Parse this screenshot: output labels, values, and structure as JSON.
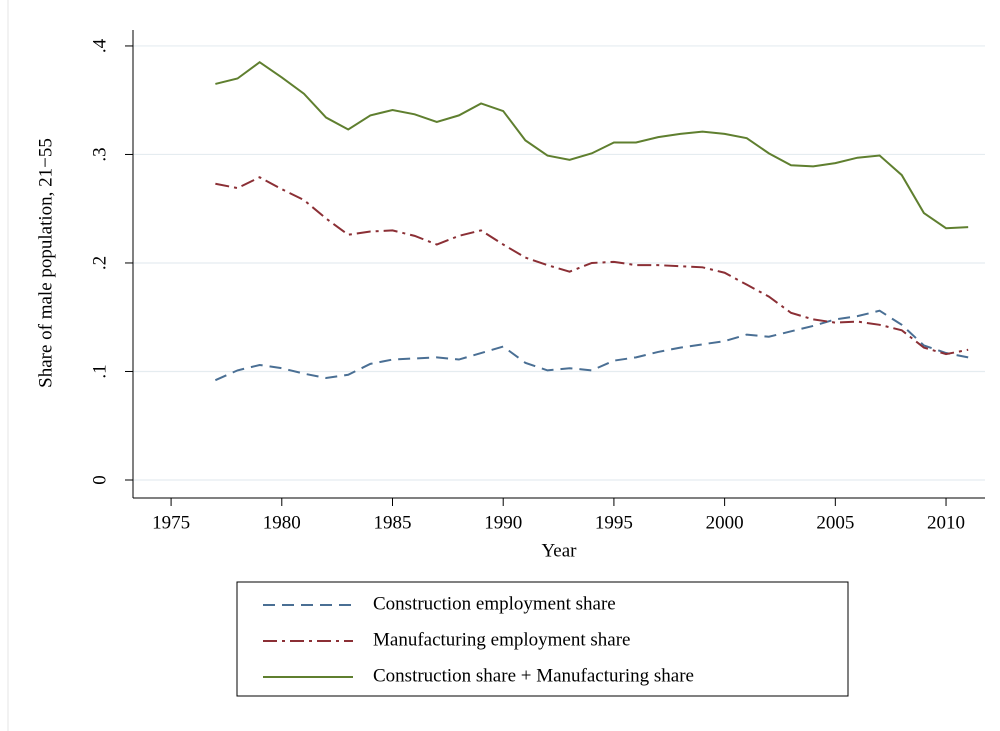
{
  "chart_data": {
    "type": "line",
    "x_label": "Year",
    "y_label": "Share of male population, 21−55",
    "x": [
      1977,
      1978,
      1979,
      1980,
      1981,
      1982,
      1983,
      1984,
      1985,
      1986,
      1987,
      1988,
      1989,
      1990,
      1991,
      1992,
      1993,
      1994,
      1995,
      1996,
      1997,
      1998,
      1999,
      2000,
      2001,
      2002,
      2003,
      2004,
      2005,
      2006,
      2007,
      2008,
      2009,
      2010,
      2011
    ],
    "series": [
      {
        "name": "Construction employment share",
        "color": "#4a6f94",
        "dash": "dashed",
        "values": [
          0.092,
          0.101,
          0.106,
          0.103,
          0.098,
          0.094,
          0.097,
          0.107,
          0.111,
          0.112,
          0.113,
          0.111,
          0.117,
          0.123,
          0.108,
          0.101,
          0.103,
          0.101,
          0.11,
          0.113,
          0.118,
          0.122,
          0.125,
          0.128,
          0.134,
          0.132,
          0.137,
          0.142,
          0.148,
          0.151,
          0.156,
          0.143,
          0.124,
          0.117,
          0.113
        ]
      },
      {
        "name": "Manufacturing employment share",
        "color": "#8b2f35",
        "dash": "dashdot",
        "values": [
          0.273,
          0.269,
          0.279,
          0.268,
          0.258,
          0.241,
          0.226,
          0.229,
          0.23,
          0.225,
          0.217,
          0.225,
          0.23,
          0.217,
          0.205,
          0.198,
          0.192,
          0.2,
          0.201,
          0.198,
          0.198,
          0.197,
          0.196,
          0.191,
          0.18,
          0.169,
          0.154,
          0.148,
          0.145,
          0.146,
          0.143,
          0.138,
          0.122,
          0.116,
          0.12
        ]
      },
      {
        "name": "Construction share + Manufacturing share",
        "color": "#5f7f2f",
        "dash": "solid",
        "values": [
          0.365,
          0.37,
          0.385,
          0.371,
          0.356,
          0.334,
          0.323,
          0.336,
          0.341,
          0.337,
          0.33,
          0.336,
          0.347,
          0.34,
          0.313,
          0.299,
          0.295,
          0.301,
          0.311,
          0.311,
          0.316,
          0.319,
          0.321,
          0.319,
          0.315,
          0.301,
          0.29,
          0.289,
          0.292,
          0.297,
          0.299,
          0.281,
          0.246,
          0.232,
          0.233
        ]
      }
    ],
    "xlim": [
      1973.28,
      2011.76
    ],
    "xticks": [
      1975,
      1980,
      1985,
      1990,
      1995,
      2000,
      2005,
      2010
    ],
    "ylim": [
      -0.0166,
      0.4147
    ],
    "yticks": [
      0,
      {
        "value": 0.1,
        "label": ".1"
      },
      {
        "value": 0.2,
        "label": ".2"
      },
      {
        "value": 0.3,
        "label": ".3"
      },
      {
        "value": 0.4,
        "label": ".4"
      }
    ],
    "grid": true,
    "legend": "bottom"
  }
}
